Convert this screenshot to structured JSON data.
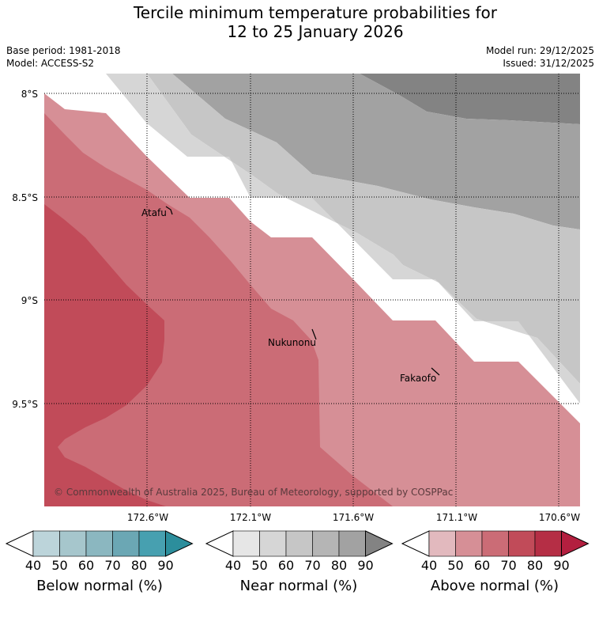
{
  "title_line1": "Tercile minimum temperature probabilities for",
  "title_line2": "12 to 25 January 2026",
  "meta": {
    "base_period": "Base period: 1981-2018",
    "model": "Model: ACCESS-S2",
    "model_run": "Model run: 29/12/2025",
    "issued": "Issued: 31/12/2025"
  },
  "map": {
    "lat_labels": [
      "8°S",
      "8.5°S",
      "9°S",
      "9.5°S"
    ],
    "lon_labels": [
      "172.6°W",
      "172.1°W",
      "171.6°W",
      "171.1°W",
      "170.6°W"
    ],
    "places": [
      "Atafu",
      "Nukunonu",
      "Fakaofo"
    ],
    "copyright": "© Commonwealth of Australia 2025, Bureau of Meteorology, supported by COSPPac",
    "colors": {
      "above_50": "#d68f96",
      "above_60": "#cb6c76",
      "above_70": "#c14b59",
      "near_40": "#d6d6d6",
      "near_50": "#c6c6c6",
      "near_60": "#a2a2a2",
      "near_70": "#838383",
      "white": "#ffffff"
    }
  },
  "colorbars": [
    {
      "label": "Below normal (%)",
      "ticks": [
        "40",
        "50",
        "60",
        "70",
        "80",
        "90"
      ],
      "colors": [
        "#ffffff",
        "#bcd4da",
        "#a6c6cc",
        "#8bb7c0",
        "#6ba7b4",
        "#47a0b0",
        "#2c8e9c"
      ]
    },
    {
      "label": "Near normal (%)",
      "ticks": [
        "40",
        "50",
        "60",
        "70",
        "80",
        "90"
      ],
      "colors": [
        "#ffffff",
        "#e6e6e6",
        "#d6d6d6",
        "#c6c6c6",
        "#b5b5b5",
        "#a2a2a2",
        "#838383"
      ]
    },
    {
      "label": "Above normal (%)",
      "ticks": [
        "40",
        "50",
        "60",
        "70",
        "80",
        "90"
      ],
      "colors": [
        "#ffffff",
        "#e2b9be",
        "#d68f96",
        "#cb6c76",
        "#c14b59",
        "#b52e45",
        "#b31f3f"
      ]
    }
  ]
}
